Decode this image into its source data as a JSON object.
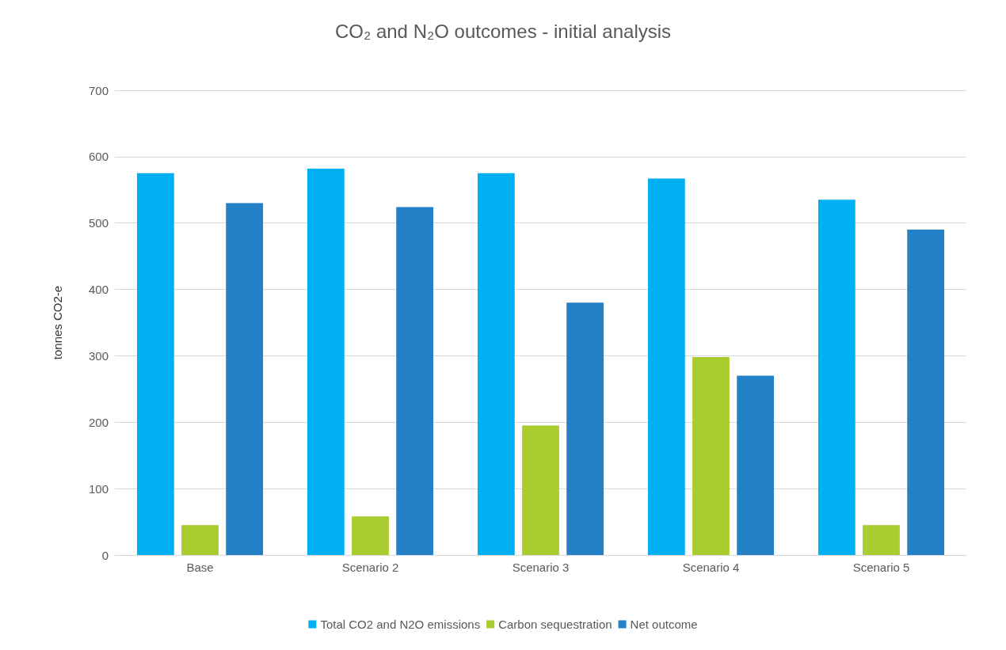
{
  "chart_data": {
    "type": "bar",
    "title": "CO₂ and N₂O outcomes - initial analysis",
    "ylabel": "tonnes CO2-e",
    "categories": [
      "Base",
      "Scenario 2",
      "Scenario 3",
      "Scenario 4",
      "Scenario 5"
    ],
    "series": [
      {
        "name": "Total CO2 and N2O emissions",
        "color": "#00b0f0",
        "values": [
          575,
          582,
          575,
          567,
          535
        ]
      },
      {
        "name": "Carbon sequestration",
        "color": "#a9cc2e",
        "values": [
          45,
          58,
          195,
          298,
          45
        ]
      },
      {
        "name": "Net outcome",
        "color": "#2481c8",
        "values": [
          530,
          524,
          380,
          270,
          490
        ]
      }
    ],
    "ylim": [
      0,
      700
    ],
    "yticks": [
      0,
      100,
      200,
      300,
      400,
      500,
      600,
      700
    ],
    "grid": "y",
    "legend": "bottom"
  }
}
